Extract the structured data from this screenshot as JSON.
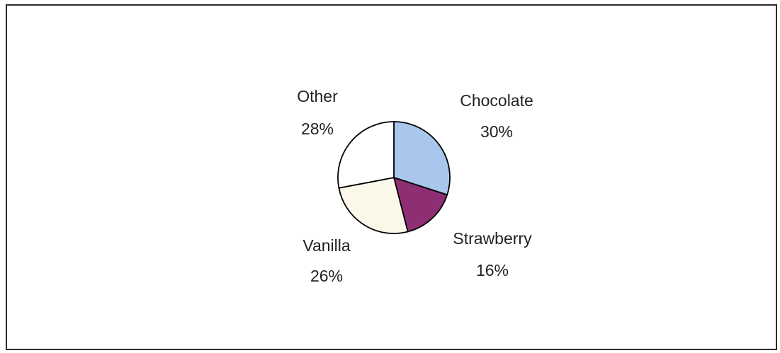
{
  "chart_data": {
    "type": "pie",
    "title": "",
    "start_angle_deg": 0,
    "direction": "clockwise",
    "slices": [
      {
        "label": "Chocolate",
        "value": 30,
        "value_label": "30%",
        "color": "#a9c6ec"
      },
      {
        "label": "Strawberry",
        "value": 16,
        "value_label": "16%",
        "color": "#8f2f73"
      },
      {
        "label": "Vanilla",
        "value": 26,
        "value_label": "26%",
        "color": "#fbf8ea"
      },
      {
        "label": "Other",
        "value": 28,
        "value_label": "28%",
        "color": "#ffffff"
      }
    ],
    "slice_outline_color": "#000000",
    "label_color": "#222222",
    "frame_border_color": "#2b2b2b",
    "legend": "none",
    "grid": false
  }
}
